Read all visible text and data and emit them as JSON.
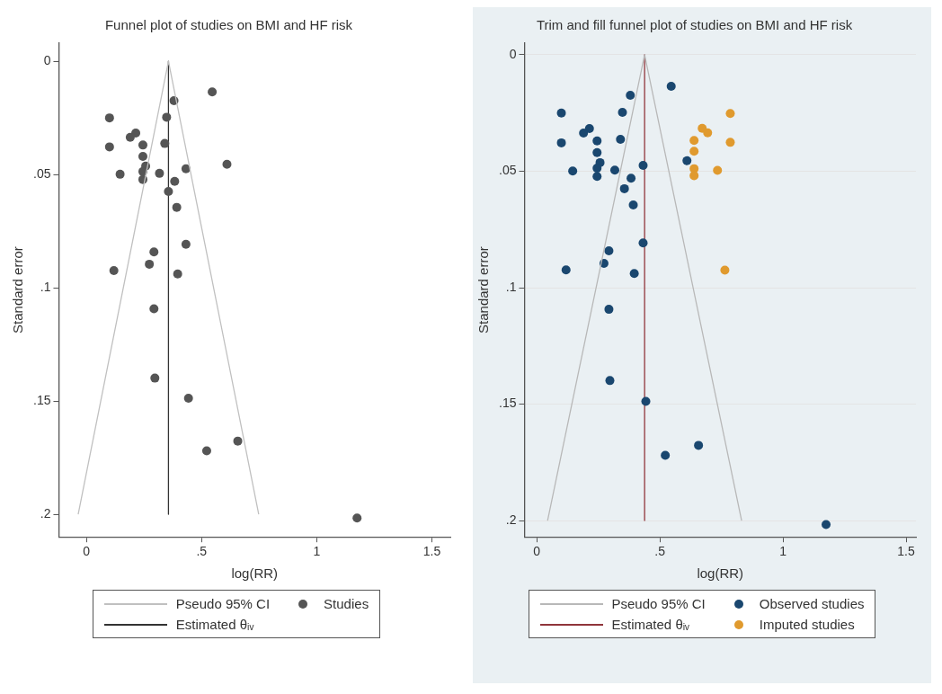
{
  "chart_data": [
    {
      "type": "scatter",
      "title": "Funnel plot of studies on BMI and HF risk",
      "xlabel": "log(RR)",
      "ylabel": "Standard error",
      "xlim": [
        -0.12,
        1.58
      ],
      "ylim": [
        0.21,
        -0.008
      ],
      "xticks": [
        0,
        {
          "value": 0.5,
          "label": ".5"
        },
        1,
        1.5
      ],
      "yticks": [
        0,
        {
          "value": 0.05,
          "label": ".05"
        },
        {
          "value": 0.1,
          "label": ".1"
        },
        {
          "value": 0.15,
          "label": ".15"
        },
        {
          "value": 0.2,
          "label": ".2"
        }
      ],
      "legend": "bottom",
      "marker": "circle",
      "series": [
        {
          "type": "line",
          "marker": "none",
          "name": "Pseudo 95% CI",
          "color": "#c0c0c0",
          "x": [
            -0.036,
            0.356,
            0.748
          ],
          "values": [
            0.2,
            0,
            0.2
          ]
        },
        {
          "name": "Studies",
          "color": "#555555",
          "x": [
            0.546,
            0.38,
            0.1,
            0.348,
            0.214,
            0.19,
            0.1,
            0.245,
            0.34,
            0.245,
            0.257,
            0.61,
            0.432,
            0.146,
            0.245,
            0.317,
            0.245,
            0.383,
            0.356,
            0.392,
            0.432,
            0.293,
            0.273,
            0.119,
            0.396,
            0.293,
            0.297,
            0.443,
            0.657,
            0.522,
            1.175
          ],
          "values": [
            0.0135,
            0.0174,
            0.025,
            0.0247,
            0.0317,
            0.0336,
            0.0378,
            0.037,
            0.0363,
            0.042,
            0.0463,
            0.0455,
            0.0475,
            0.0499,
            0.0487,
            0.0495,
            0.0522,
            0.053,
            0.0575,
            0.0645,
            0.0808,
            0.0842,
            0.0896,
            0.0924,
            0.0939,
            0.1093,
            0.1399,
            0.1488,
            0.1677,
            0.172,
            0.2017
          ]
        },
        {
          "type": "line",
          "marker": "none",
          "name": "Estimated θᵢᵥ",
          "color": "#333333",
          "x": [
            0.356,
            0.356
          ],
          "values": [
            0,
            0.2
          ]
        }
      ]
    },
    {
      "type": "scatter",
      "title": "Trim and fill funnel plot of studies on BMI and HF risk",
      "xlabel": "log(RR)",
      "ylabel": "Standard error",
      "xlim": [
        -0.05,
        1.54
      ],
      "ylim": [
        0.207,
        -0.005
      ],
      "xticks": [
        0,
        {
          "value": 0.5,
          "label": ".5"
        },
        1,
        1.5
      ],
      "yticks": [
        0,
        {
          "value": 0.05,
          "label": ".05"
        },
        {
          "value": 0.1,
          "label": ".1"
        },
        {
          "value": 0.15,
          "label": ".15"
        },
        {
          "value": 0.2,
          "label": ".2"
        }
      ],
      "grid": "y",
      "legend": "bottom",
      "marker": "circle",
      "series": [
        {
          "type": "line",
          "marker": "none",
          "name": "Pseudo 95% CI",
          "color": "#b8b8b8",
          "x": [
            0.044,
            0.438,
            0.832
          ],
          "values": [
            0.2,
            0,
            0.2
          ]
        },
        {
          "name": "Observed studies",
          "color": "#1a476f",
          "x": [
            0.546,
            0.38,
            0.1,
            0.348,
            0.214,
            0.19,
            0.1,
            0.245,
            0.34,
            0.245,
            0.257,
            0.61,
            0.432,
            0.146,
            0.245,
            0.317,
            0.245,
            0.383,
            0.356,
            0.392,
            0.432,
            0.293,
            0.273,
            0.119,
            0.396,
            0.293,
            0.297,
            0.443,
            0.657,
            0.522,
            1.175
          ],
          "values": [
            0.0135,
            0.0174,
            0.025,
            0.0247,
            0.0317,
            0.0336,
            0.0378,
            0.037,
            0.0363,
            0.042,
            0.0463,
            0.0455,
            0.0475,
            0.0499,
            0.0487,
            0.0495,
            0.0522,
            0.053,
            0.0575,
            0.0645,
            0.0808,
            0.0842,
            0.0896,
            0.0924,
            0.0939,
            0.1093,
            0.1399,
            0.1488,
            0.1677,
            0.172,
            0.2017
          ]
        },
        {
          "type": "line",
          "marker": "none",
          "name": "Estimated θᵢᵥ",
          "color": "#90353b",
          "x": [
            0.438,
            0.438
          ],
          "values": [
            0,
            0.2
          ]
        },
        {
          "name": "Imputed studies",
          "color": "#e09a2e",
          "x": [
            0.786,
            0.672,
            0.694,
            0.639,
            0.786,
            0.639,
            0.639,
            0.734,
            0.639,
            0.764
          ],
          "values": [
            0.0252,
            0.0316,
            0.0335,
            0.0368,
            0.0376,
            0.0414,
            0.0489,
            0.0496,
            0.0519,
            0.0925
          ]
        }
      ]
    }
  ]
}
